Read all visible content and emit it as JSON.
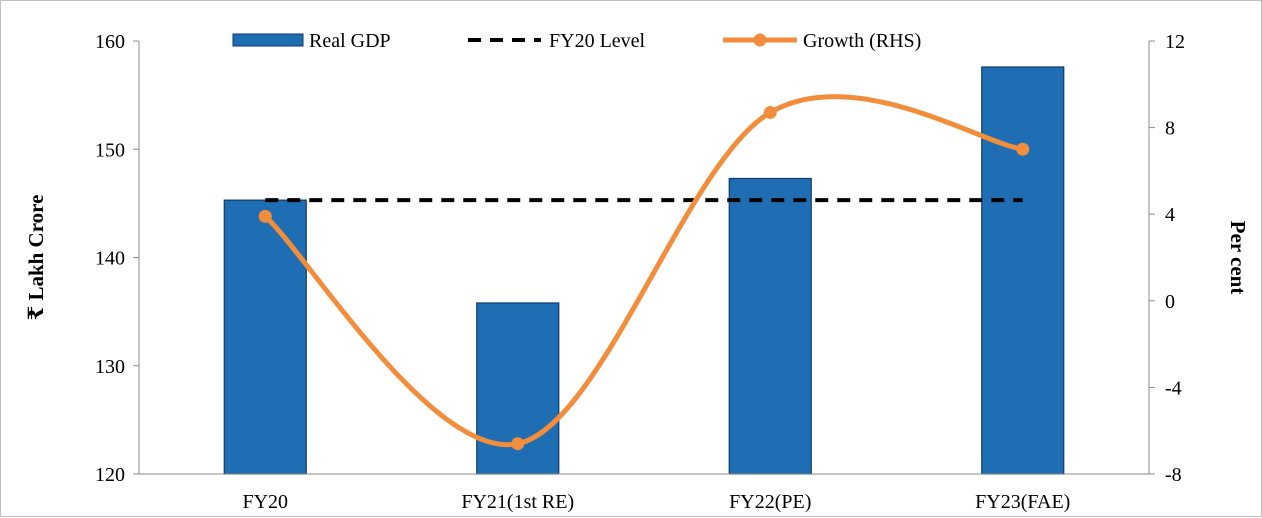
{
  "chart_data": {
    "type": "bar",
    "categories": [
      "FY20",
      "FY21(1st RE)",
      "FY22(PE)",
      "FY23(FAE)"
    ],
    "series": [
      {
        "name": "Real GDP",
        "type": "bar",
        "axis": "left",
        "color": "#1f6db3",
        "values": [
          145.3,
          135.8,
          147.3,
          157.6
        ]
      },
      {
        "name": "FY20 Level",
        "type": "line",
        "style": "dashed",
        "axis": "left",
        "color": "#000000",
        "values": [
          145.3,
          145.3,
          145.3,
          145.3
        ]
      },
      {
        "name": "Growth (RHS)",
        "type": "line",
        "style": "smooth-with-markers",
        "axis": "right",
        "color": "#f28e3b",
        "values": [
          3.9,
          -6.6,
          8.7,
          7.0
        ]
      }
    ],
    "ylabel": "₹ Lakh Crore",
    "y2label": "Per cent",
    "ylim": [
      120,
      160
    ],
    "y2lim": [
      -8,
      12
    ],
    "yticks": [
      "120",
      "130",
      "140",
      "150",
      "160"
    ],
    "y2ticks": [
      "-8",
      "-4",
      "0",
      "4",
      "8",
      "12"
    ],
    "legend": "top",
    "grid": false
  }
}
